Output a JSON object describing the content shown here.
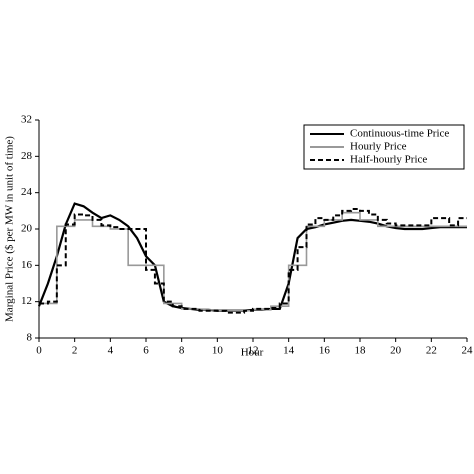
{
  "chart_data": {
    "type": "line",
    "xlabel": "Hour",
    "ylabel": "Marginal Price ($ per MW in unit of time)",
    "x": [
      0,
      0.5,
      1,
      1.5,
      2,
      2.5,
      3,
      3.5,
      4,
      4.5,
      5,
      5.5,
      6,
      6.5,
      7,
      7.5,
      8,
      8.5,
      9,
      9.5,
      10,
      10.5,
      11,
      11.5,
      12,
      12.5,
      13,
      13.5,
      14,
      14.5,
      15,
      15.5,
      16,
      16.5,
      17,
      17.5,
      18,
      18.5,
      19,
      19.5,
      20,
      20.5,
      21,
      21.5,
      22,
      22.5,
      23,
      23.5,
      24
    ],
    "series": [
      {
        "name": "Continuous-time Price",
        "color": "#000000",
        "style": "solid",
        "step": false,
        "values": [
          11.5,
          14,
          17,
          20.5,
          22.8,
          22.5,
          21.8,
          21.2,
          21.5,
          21,
          20.3,
          19,
          17,
          16,
          12,
          11.5,
          11.3,
          11.2,
          11.1,
          11.1,
          11,
          11,
          11,
          11,
          11.1,
          11.1,
          11.2,
          11.2,
          14,
          19,
          20,
          20.2,
          20.5,
          20.7,
          20.9,
          21,
          20.9,
          20.8,
          20.6,
          20.3,
          20.1,
          20,
          20,
          20,
          20.1,
          20.2,
          20.2,
          20.2,
          20.2
        ]
      },
      {
        "name": "Hourly Price",
        "color": "#999999",
        "style": "solid",
        "step": true,
        "values": [
          11.8,
          11.8,
          20.3,
          20.3,
          21,
          21,
          20.3,
          20.3,
          20,
          20,
          16,
          16,
          16,
          16,
          11.8,
          11.8,
          11.2,
          11.2,
          11.1,
          11.1,
          11,
          11,
          11,
          11,
          11.1,
          11.1,
          11.5,
          11.5,
          16,
          16,
          20.3,
          20.3,
          21,
          21,
          21.8,
          21.8,
          21,
          21,
          20.3,
          20.3,
          20.3,
          20.3,
          20.3,
          20.3,
          20.3,
          20.3,
          20.3,
          20.3,
          20.3
        ]
      },
      {
        "name": "Half-hourly Price",
        "color": "#000000",
        "style": "dashed",
        "step": true,
        "values": [
          11.8,
          12,
          16,
          20.5,
          21.6,
          21.5,
          21,
          20.4,
          20.2,
          20,
          20,
          20,
          15.5,
          14,
          12,
          11.5,
          11.2,
          11.2,
          11,
          11,
          11,
          10.8,
          10.8,
          11,
          11.2,
          11.2,
          11.3,
          11.8,
          15.5,
          18,
          20.5,
          21.2,
          21,
          21.5,
          22,
          22.2,
          22,
          21.6,
          21,
          20.6,
          20.4,
          20.4,
          20.4,
          20.4,
          21.2,
          21.2,
          20.4,
          21.2,
          21.2
        ]
      }
    ],
    "xlim": [
      0,
      24
    ],
    "xticks": [
      0,
      2,
      4,
      6,
      8,
      10,
      12,
      14,
      16,
      18,
      20,
      22,
      24
    ],
    "ylim": [
      8,
      32
    ],
    "yticks": [
      8,
      12,
      16,
      20,
      24,
      28,
      32
    ],
    "legend": "upper right"
  }
}
